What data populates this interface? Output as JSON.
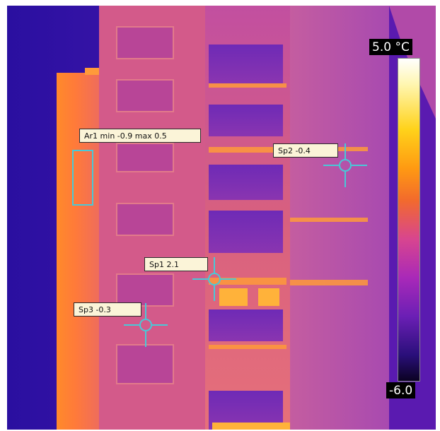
{
  "image": {
    "palette": "iron",
    "accent_marker_color": "#48c9d8"
  },
  "scale": {
    "max_label": "5.0 °C",
    "min_label": "-6.0"
  },
  "measurements": {
    "area1": {
      "label": "Ar1 min -0.9 max 0.5"
    },
    "spot1": {
      "label": "Sp1 2.1"
    },
    "spot2": {
      "label": "Sp2 -0.4"
    },
    "spot3": {
      "label": "Sp3 -0.3"
    }
  }
}
